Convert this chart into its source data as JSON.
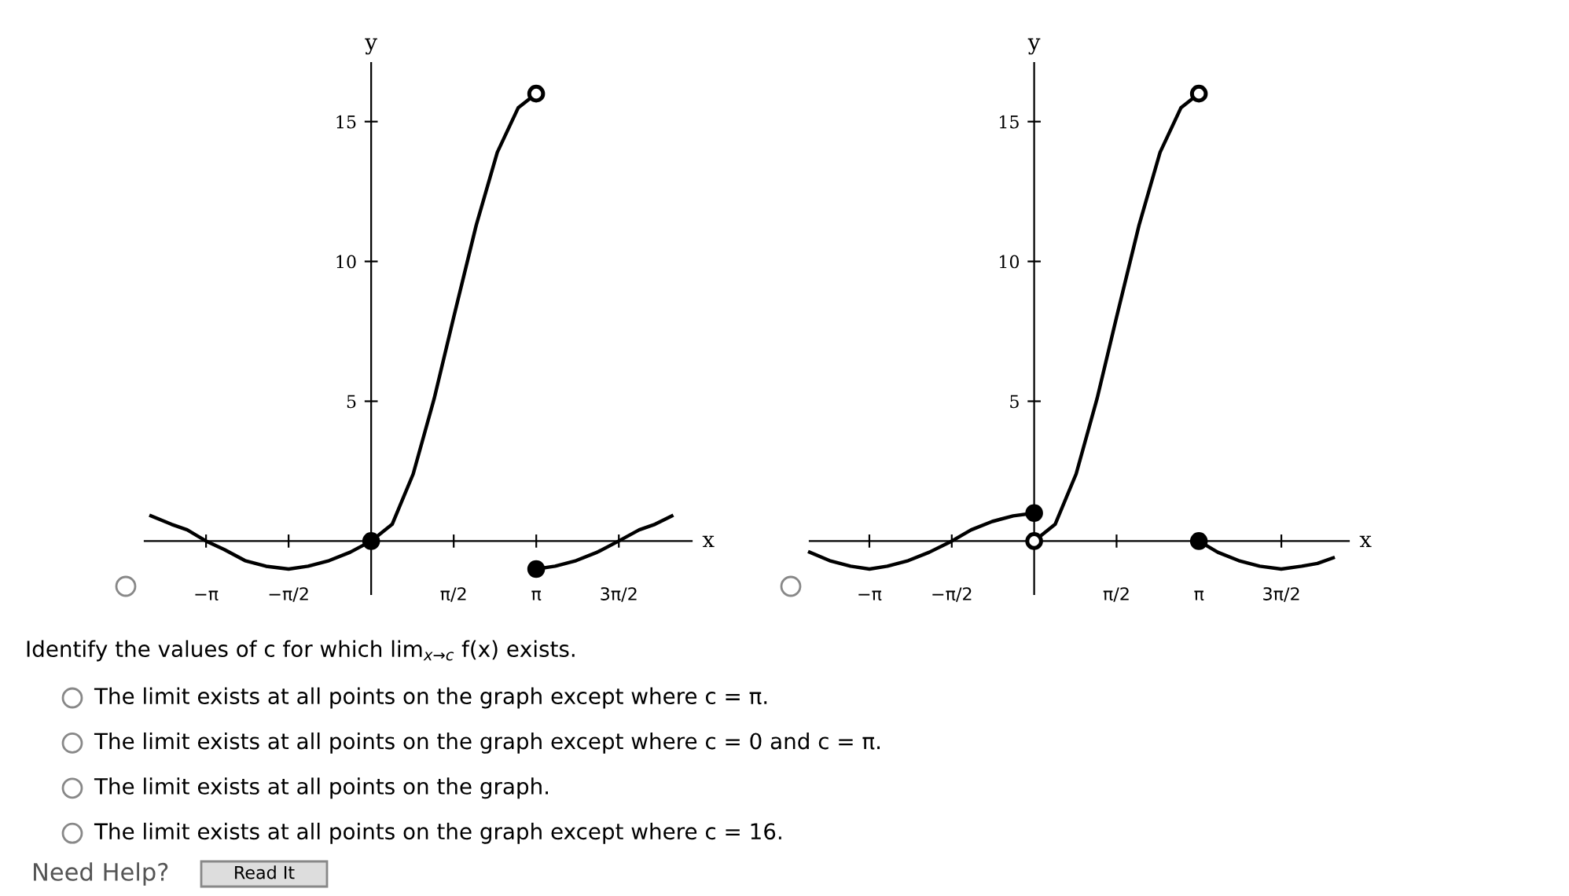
{
  "chart_data": [
    {
      "type": "line",
      "xlabel": "x",
      "ylabel": "y",
      "xlim": [
        -4.31,
        6.1
      ],
      "ylim": [
        -1.9,
        17.1
      ],
      "xticks": [
        {
          "value": -3.1416,
          "label": "−π"
        },
        {
          "value": -1.5708,
          "label": "−π/2"
        },
        {
          "value": 1.5708,
          "label": "π/2"
        },
        {
          "value": 3.1416,
          "label": "π"
        },
        {
          "value": 4.7124,
          "label": "3π/2"
        }
      ],
      "yticks": [
        5,
        10,
        15
      ],
      "grid": false,
      "legend": false,
      "series": [
        {
          "color": "#000000",
          "x": [
            -4.19,
            -3.8,
            -3.5,
            -3.14,
            -2.8,
            -2.4,
            -2.0,
            -1.57,
            -1.2,
            -0.8,
            -0.4,
            0
          ],
          "values": [
            0.9,
            0.6,
            0.4,
            0,
            -0.3,
            -0.7,
            -0.9,
            -1,
            -0.9,
            -0.7,
            -0.4,
            0
          ]
        },
        {
          "color": "#000000",
          "x": [
            0,
            0.4,
            0.8,
            1.2,
            1.57,
            2.0,
            2.4,
            2.8,
            3.14
          ],
          "values": [
            0,
            0.6,
            2.4,
            5.1,
            8,
            11.3,
            13.9,
            15.5,
            16
          ]
        },
        {
          "color": "#000000",
          "x": [
            3.14,
            3.5,
            3.9,
            4.3,
            4.71,
            5.1,
            5.4,
            5.72
          ],
          "values": [
            -1,
            -0.9,
            -0.7,
            -0.4,
            0,
            0.4,
            0.6,
            0.9
          ]
        },
        {
          "type": "scatter",
          "marker": "circle",
          "color": "#000000",
          "x": [
            0,
            3.14
          ],
          "values": [
            0,
            -1
          ]
        },
        {
          "type": "scatter",
          "marker": "circle",
          "color": "#ffffff",
          "x": [
            3.14
          ],
          "values": [
            16
          ]
        }
      ],
      "annotations": [
        "Identify the values of c for which lim$_{x→c}$ f(x) exists.",
        "The limit exists at all points on the graph except where c = π.",
        "The limit exists at all points on the graph except where c = 0 and c = π.",
        "The limit exists at all points on the graph.",
        "The limit exists at all points on the graph except where c = 16.",
        "Need Help?",
        "Read It"
      ]
    },
    {
      "type": "line",
      "xlabel": "x",
      "ylabel": "y",
      "xlim": [
        -4.28,
        6.0
      ],
      "ylim": [
        -1.9,
        17.1
      ],
      "xticks": [
        {
          "value": -3.1416,
          "label": "−π"
        },
        {
          "value": -1.5708,
          "label": "−π/2"
        },
        {
          "value": 1.5708,
          "label": "π/2"
        },
        {
          "value": 3.1416,
          "label": "π"
        },
        {
          "value": 4.7124,
          "label": "3π/2"
        }
      ],
      "yticks": [
        5,
        10,
        15
      ],
      "grid": false,
      "legend": false,
      "series": [
        {
          "color": "#000000",
          "x": [
            -4.28,
            -3.9,
            -3.5,
            -3.14,
            -2.8,
            -2.4,
            -2.0,
            -1.57,
            -1.2,
            -0.8,
            -0.4,
            0
          ],
          "values": [
            -0.4,
            -0.7,
            -0.9,
            -1,
            -0.9,
            -0.7,
            -0.4,
            0,
            0.4,
            0.7,
            0.9,
            1
          ]
        },
        {
          "color": "#000000",
          "x": [
            0,
            0.4,
            0.8,
            1.2,
            1.57,
            2.0,
            2.4,
            2.8,
            3.14
          ],
          "values": [
            0,
            0.6,
            2.4,
            5.1,
            8,
            11.3,
            13.9,
            15.5,
            16
          ]
        },
        {
          "color": "#000000",
          "x": [
            3.14,
            3.5,
            3.9,
            4.3,
            4.71,
            5.1,
            5.4,
            5.7
          ],
          "values": [
            0,
            -0.4,
            -0.7,
            -0.9,
            -1,
            -0.9,
            -0.8,
            -0.6
          ]
        },
        {
          "type": "scatter",
          "marker": "circle",
          "color": "#000000",
          "x": [
            0,
            3.14
          ],
          "values": [
            1,
            0
          ]
        },
        {
          "type": "scatter",
          "marker": "circle",
          "color": "#ffffff",
          "x": [
            0,
            3.14
          ],
          "values": [
            0,
            16
          ]
        }
      ]
    }
  ]
}
